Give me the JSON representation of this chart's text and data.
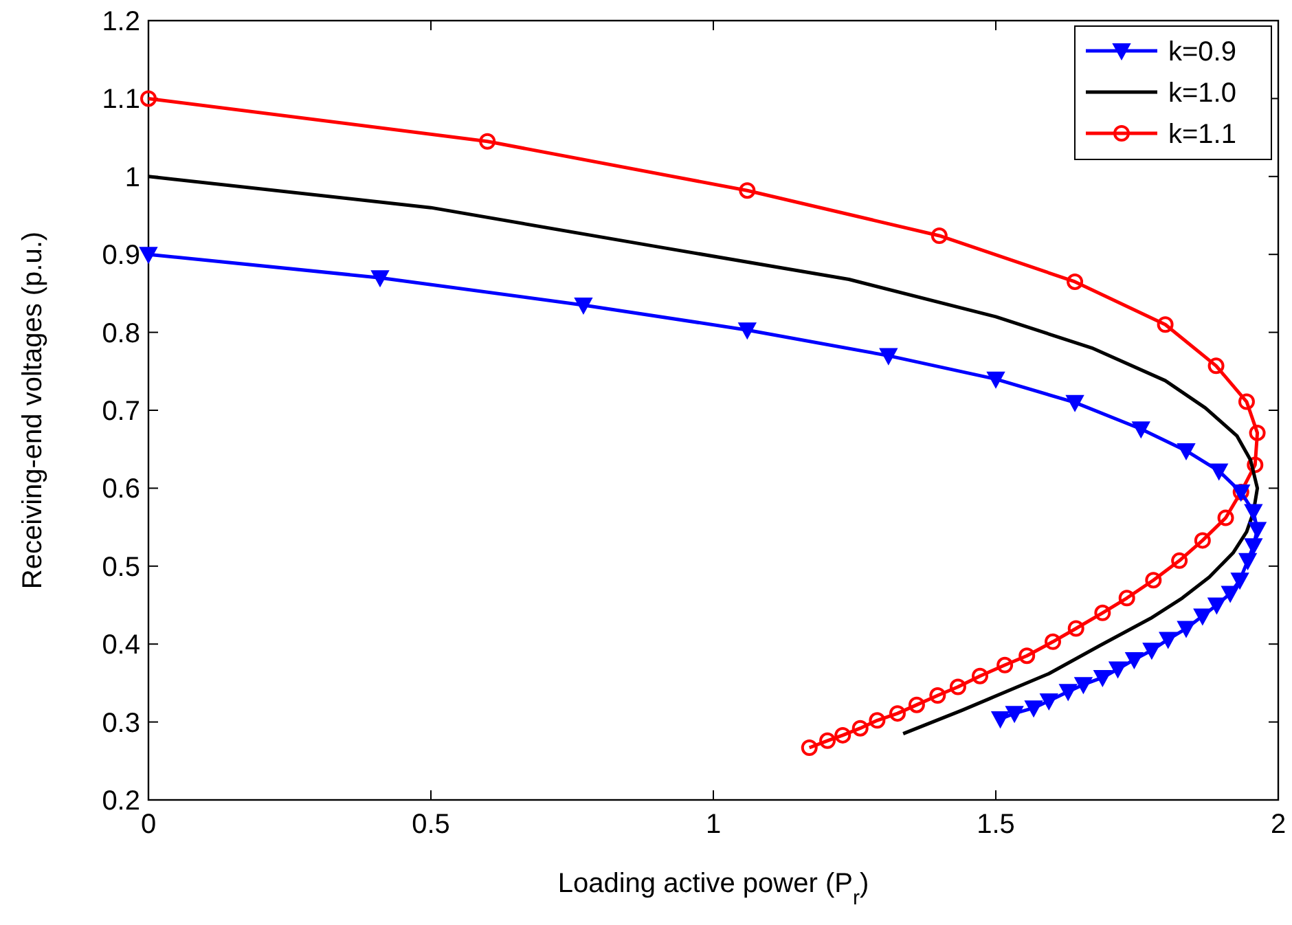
{
  "chart_data": {
    "type": "line",
    "xlabel": "Loading active power (P$_{r}$)",
    "ylabel": "Receiving-end voltages (p.u.)",
    "xlim": [
      0,
      2
    ],
    "ylim": [
      0.2,
      1.2
    ],
    "xticks": [
      0,
      0.5,
      1,
      1.5,
      2
    ],
    "yticks": [
      0.2,
      0.3,
      0.4,
      0.5,
      0.6,
      0.7,
      0.8,
      0.9,
      1,
      1.1,
      1.2
    ],
    "grid": false,
    "legend": "top right",
    "series": [
      {
        "name": "k=0.9",
        "color": "#0000ff",
        "marker": "triangle",
        "x": [
          0,
          0.41,
          0.77,
          1.06,
          1.31,
          1.5,
          1.64,
          1.757,
          1.837,
          1.895,
          1.934,
          1.956,
          1.963,
          1.956,
          1.946,
          1.932,
          1.915,
          1.891,
          1.866,
          1.837,
          1.805,
          1.776,
          1.745,
          1.716,
          1.689,
          1.655,
          1.628,
          1.594,
          1.567,
          1.533,
          1.508
        ],
        "values": [
          0.9,
          0.87,
          0.835,
          0.803,
          0.77,
          0.74,
          0.71,
          0.676,
          0.648,
          0.622,
          0.595,
          0.57,
          0.547,
          0.526,
          0.507,
          0.482,
          0.465,
          0.45,
          0.436,
          0.42,
          0.406,
          0.392,
          0.38,
          0.368,
          0.357,
          0.348,
          0.339,
          0.327,
          0.318,
          0.311,
          0.304
        ]
      },
      {
        "name": "k=1.0",
        "color": "#000000",
        "marker": "none",
        "x": [
          0,
          0.5,
          0.9,
          1.24,
          1.5,
          1.67,
          1.8,
          1.871,
          1.927,
          1.951,
          1.963,
          1.956,
          1.944,
          1.92,
          1.878,
          1.83,
          1.774,
          1.684,
          1.594,
          1.489,
          1.44,
          1.336
        ],
        "values": [
          1,
          0.96,
          0.91,
          0.868,
          0.82,
          0.78,
          0.738,
          0.703,
          0.667,
          0.636,
          0.6,
          0.569,
          0.544,
          0.517,
          0.486,
          0.459,
          0.433,
          0.398,
          0.362,
          0.33,
          0.315,
          0.285
        ]
      },
      {
        "name": "k=1.1",
        "color": "#ff0000",
        "marker": "circle",
        "x": [
          0,
          0.6,
          1.06,
          1.4,
          1.64,
          1.8,
          1.89,
          1.944,
          1.963,
          1.959,
          1.934,
          1.907,
          1.866,
          1.825,
          1.779,
          1.732,
          1.689,
          1.642,
          1.601,
          1.555,
          1.516,
          1.472,
          1.433,
          1.397,
          1.36,
          1.326,
          1.29,
          1.26,
          1.229,
          1.202,
          1.17
        ],
        "values": [
          1.1,
          1.045,
          0.982,
          0.924,
          0.865,
          0.81,
          0.757,
          0.711,
          0.671,
          0.63,
          0.595,
          0.562,
          0.533,
          0.507,
          0.482,
          0.459,
          0.44,
          0.42,
          0.403,
          0.385,
          0.373,
          0.359,
          0.345,
          0.334,
          0.322,
          0.311,
          0.302,
          0.292,
          0.283,
          0.276,
          0.267
        ]
      }
    ]
  }
}
